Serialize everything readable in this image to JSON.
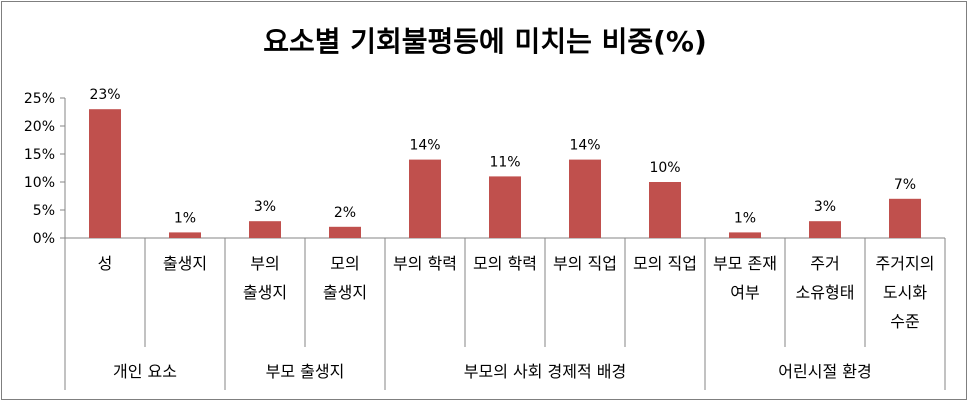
{
  "chart_data": {
    "type": "bar",
    "title": "요소별 기회불평등에 미치는 비중(%)",
    "xlabel": "",
    "ylabel": "",
    "ylim": [
      0,
      25
    ],
    "yticks": [
      "0%",
      "5%",
      "10%",
      "15%",
      "20%",
      "25%"
    ],
    "grid": false,
    "legend": "none",
    "bar_color": "#c0504d",
    "categories": [
      [
        "성"
      ],
      [
        "출생지"
      ],
      [
        "부의",
        "출생지"
      ],
      [
        "모의",
        "출생지"
      ],
      [
        "부의 학력"
      ],
      [
        "모의 학력"
      ],
      [
        "부의 직업"
      ],
      [
        "모의 직업"
      ],
      [
        "부모 존재",
        "여부"
      ],
      [
        "주거",
        "소유형태"
      ],
      [
        "주거지의",
        "도시화",
        "수준"
      ]
    ],
    "values": [
      23,
      1,
      3,
      2,
      14,
      11,
      14,
      10,
      1,
      3,
      7
    ],
    "data_labels": [
      "23%",
      "1%",
      "3%",
      "2%",
      "14%",
      "11%",
      "14%",
      "10%",
      "1%",
      "3%",
      "7%"
    ],
    "groups": [
      {
        "label": "개인 요소",
        "start": 0,
        "end": 1
      },
      {
        "label": "부모 출생지",
        "start": 2,
        "end": 3
      },
      {
        "label": "부모의 사회 경제적 배경",
        "start": 4,
        "end": 7
      },
      {
        "label": "어린시절 환경",
        "start": 8,
        "end": 10
      }
    ]
  }
}
